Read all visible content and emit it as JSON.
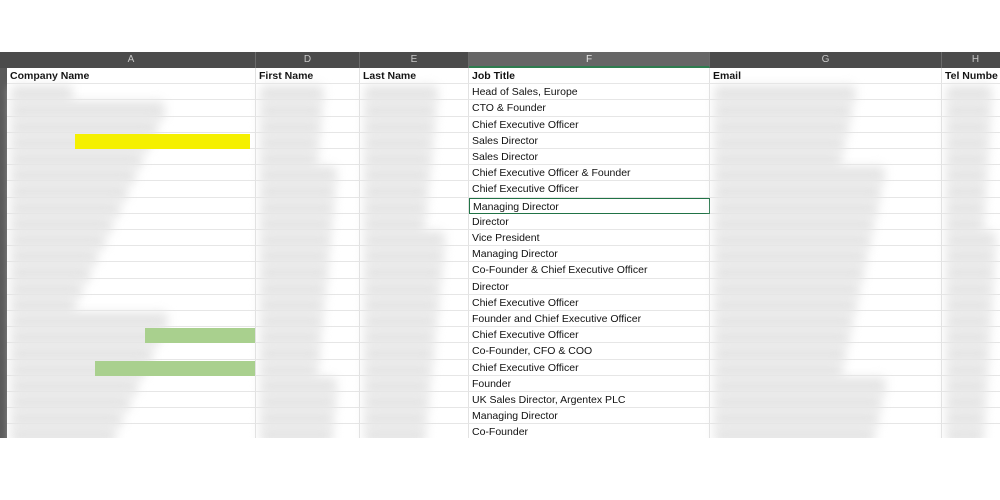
{
  "columns": [
    {
      "letter": "A",
      "header": "Company Name"
    },
    {
      "letter": "D",
      "header": "First Name"
    },
    {
      "letter": "E",
      "header": "Last Name"
    },
    {
      "letter": "F",
      "header": "Job Title"
    },
    {
      "letter": "G",
      "header": "Email"
    },
    {
      "letter": "H",
      "header": "Tel Numbe"
    }
  ],
  "job_titles": [
    "Head of Sales, Europe",
    "CTO & Founder",
    "Chief Executive Officer",
    "Sales Director",
    "Sales Director",
    "Chief Executive Officer & Founder",
    "Chief Executive Officer",
    "Managing Director",
    "Director",
    "Vice President",
    "Managing Director",
    "Co-Founder & Chief Executive Officer",
    "Director",
    "Chief Executive Officer",
    "Founder and Chief Executive Officer",
    "Chief Executive Officer",
    "Co-Founder, CFO & COO",
    "Chief Executive Officer",
    "Founder",
    "UK Sales Director, Argentex PLC",
    "Managing Director",
    "Co-Founder"
  ]
}
